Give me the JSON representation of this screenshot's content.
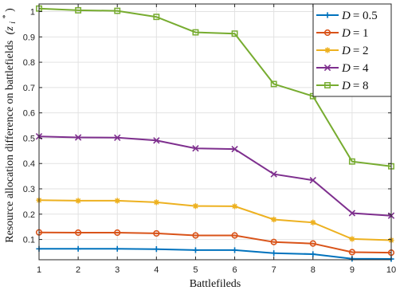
{
  "chart_data": {
    "type": "line",
    "xlabel": "Battlefileds",
    "ylabel": "Resource allocation difference on battlefields",
    "ylabel_symbol": "(z",
    "ylabel_sub": "i",
    "ylabel_sup": "*",
    "ylabel_close": ")",
    "xlim": [
      1,
      10
    ],
    "ylim": [
      0.02,
      1.03
    ],
    "x": [
      1,
      2,
      3,
      4,
      5,
      6,
      7,
      8,
      9,
      10
    ],
    "xticks": [
      "1",
      "2",
      "3",
      "4",
      "5",
      "6",
      "7",
      "8",
      "9",
      "10"
    ],
    "yticks": [
      0.1,
      0.2,
      0.3,
      0.4,
      0.5,
      0.6,
      0.7,
      0.8,
      0.9,
      1
    ],
    "ytick_labels": [
      "0.1",
      "0.2",
      "0.3",
      "0.4",
      "0.5",
      "0.6",
      "0.7",
      "0.8",
      "0.9",
      "1"
    ],
    "grid": true,
    "legend_position": "top-right",
    "series": [
      {
        "name": "D",
        "value_label": "= 0.5",
        "color": "#0072BD",
        "marker": "plus",
        "values": [
          0.063,
          0.063,
          0.063,
          0.062,
          0.058,
          0.058,
          0.046,
          0.042,
          0.024,
          0.023
        ]
      },
      {
        "name": "D",
        "value_label": "= 1",
        "color": "#D95319",
        "marker": "circle",
        "values": [
          0.128,
          0.127,
          0.127,
          0.124,
          0.116,
          0.116,
          0.09,
          0.084,
          0.05,
          0.048
        ]
      },
      {
        "name": "D",
        "value_label": "= 2",
        "color": "#EDB120",
        "marker": "star",
        "values": [
          0.255,
          0.253,
          0.253,
          0.247,
          0.232,
          0.231,
          0.179,
          0.167,
          0.102,
          0.097
        ]
      },
      {
        "name": "D",
        "value_label": "= 4",
        "color": "#7E2F8E",
        "marker": "x",
        "values": [
          0.507,
          0.503,
          0.502,
          0.491,
          0.46,
          0.457,
          0.358,
          0.334,
          0.204,
          0.194
        ]
      },
      {
        "name": "D",
        "value_label": "= 8",
        "color": "#77AC30",
        "marker": "square",
        "values": [
          1.012,
          1.005,
          1.003,
          0.979,
          0.918,
          0.913,
          0.714,
          0.666,
          0.408,
          0.389
        ]
      }
    ]
  }
}
